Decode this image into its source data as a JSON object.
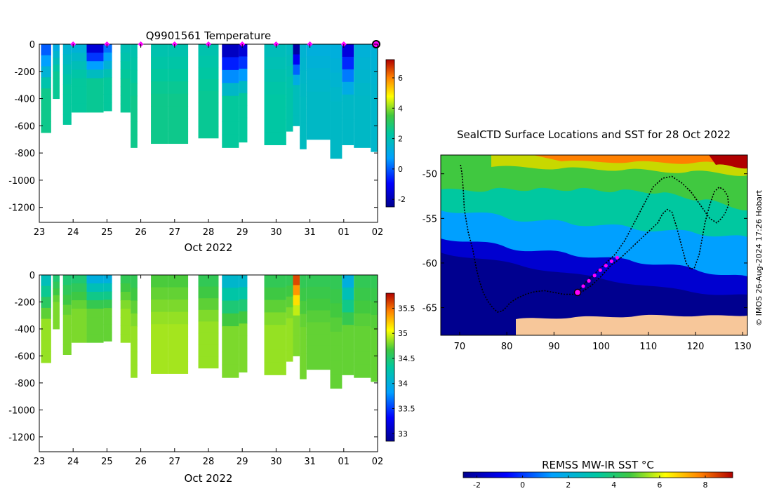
{
  "chart_data": [
    {
      "type": "heatmap",
      "title": "Q9901561  Temperature",
      "xlabel": "Oct 2022",
      "x_ticks": [
        "23",
        "24",
        "25",
        "26",
        "27",
        "28",
        "29",
        "30",
        "31",
        "01",
        "02"
      ],
      "x_range_days": [
        23,
        33
      ],
      "y_ticks": [
        "0",
        "-200",
        "-400",
        "-600",
        "-800",
        "-1000",
        "-1200"
      ],
      "ylim": [
        -1310,
        0
      ],
      "colorbar": {
        "range": [
          -2.5,
          7.2
        ],
        "ticks": [
          "-2",
          "0",
          "2",
          "4",
          "6"
        ]
      },
      "profile_markers_day": [
        24,
        25,
        26,
        27,
        28,
        29,
        30,
        31,
        32,
        33
      ],
      "profiles": [
        {
          "t0": 23.05,
          "t1": 23.35,
          "maxdepth": 650,
          "surface": 0.0,
          "deep": 2.6
        },
        {
          "t0": 23.4,
          "t1": 23.6,
          "maxdepth": 400,
          "surface": 1.2,
          "deep": 2.5
        },
        {
          "t0": 23.7,
          "t1": 23.95,
          "maxdepth": 590,
          "surface": 1.5,
          "deep": 2.4
        },
        {
          "t0": 23.95,
          "t1": 24.4,
          "maxdepth": 500,
          "surface": 1.4,
          "deep": 2.4
        },
        {
          "t0": 24.4,
          "t1": 24.9,
          "maxdepth": 500,
          "surface": -1.5,
          "deep": 2.5
        },
        {
          "t0": 24.9,
          "t1": 25.15,
          "maxdepth": 490,
          "surface": 0.2,
          "deep": 2.4
        },
        {
          "t0": 25.4,
          "t1": 25.7,
          "maxdepth": 500,
          "surface": 2.0,
          "deep": 2.5
        },
        {
          "t0": 25.7,
          "t1": 25.9,
          "maxdepth": 760,
          "surface": 2.1,
          "deep": 2.6
        },
        {
          "t0": 26.3,
          "t1": 26.8,
          "maxdepth": 730,
          "surface": 2.1,
          "deep": 2.6
        },
        {
          "t0": 26.8,
          "t1": 27.4,
          "maxdepth": 730,
          "surface": 2.1,
          "deep": 2.6
        },
        {
          "t0": 27.7,
          "t1": 28.3,
          "maxdepth": 690,
          "surface": 2.1,
          "deep": 2.5
        },
        {
          "t0": 28.4,
          "t1": 28.9,
          "maxdepth": 760,
          "surface": -1.8,
          "deep": 2.4
        },
        {
          "t0": 28.9,
          "t1": 29.15,
          "maxdepth": 720,
          "surface": -1.5,
          "deep": 2.4
        },
        {
          "t0": 29.65,
          "t1": 30.3,
          "maxdepth": 740,
          "surface": 1.9,
          "deep": 2.3
        },
        {
          "t0": 30.3,
          "t1": 30.5,
          "maxdepth": 640,
          "surface": 1.8,
          "deep": 2.2
        },
        {
          "t0": 30.5,
          "t1": 30.7,
          "maxdepth": 600,
          "surface": -2.2,
          "deep": 1.9
        },
        {
          "t0": 30.7,
          "t1": 30.9,
          "maxdepth": 770,
          "surface": 1.5,
          "deep": 1.8
        },
        {
          "t0": 30.9,
          "t1": 31.6,
          "maxdepth": 700,
          "surface": 1.3,
          "deep": 1.7
        },
        {
          "t0": 31.6,
          "t1": 31.95,
          "maxdepth": 840,
          "surface": 1.3,
          "deep": 1.7
        },
        {
          "t0": 31.95,
          "t1": 32.3,
          "maxdepth": 740,
          "surface": -1.4,
          "deep": 1.7
        },
        {
          "t0": 32.3,
          "t1": 32.8,
          "maxdepth": 760,
          "surface": 1.4,
          "deep": 1.7
        },
        {
          "t0": 32.8,
          "t1": 33.0,
          "maxdepth": 790,
          "surface": 1.4,
          "deep": 1.6
        }
      ]
    },
    {
      "type": "heatmap",
      "title": "",
      "xlabel": "Oct 2022",
      "x_ticks": [
        "23",
        "24",
        "25",
        "26",
        "27",
        "28",
        "29",
        "30",
        "31",
        "01",
        "02"
      ],
      "x_range_days": [
        23,
        33
      ],
      "y_ticks": [
        "0",
        "-200",
        "-400",
        "-600",
        "-800",
        "-1000",
        "-1200"
      ],
      "ylim": [
        -1310,
        0
      ],
      "colorbar": {
        "range": [
          32.85,
          35.8
        ],
        "ticks": [
          "33",
          "33.5",
          "34",
          "34.5",
          "35",
          "35.5"
        ]
      },
      "profiles": [
        {
          "t0": 23.05,
          "t1": 23.35,
          "maxdepth": 650,
          "surface": 34.2,
          "deep": 34.85
        },
        {
          "t0": 23.4,
          "t1": 23.6,
          "maxdepth": 400,
          "surface": 34.5,
          "deep": 34.8
        },
        {
          "t0": 23.7,
          "t1": 23.95,
          "maxdepth": 590,
          "surface": 34.5,
          "deep": 34.8
        },
        {
          "t0": 23.95,
          "t1": 24.4,
          "maxdepth": 500,
          "surface": 34.5,
          "deep": 34.8
        },
        {
          "t0": 24.4,
          "t1": 24.9,
          "maxdepth": 500,
          "surface": 34.0,
          "deep": 34.75
        },
        {
          "t0": 24.9,
          "t1": 25.15,
          "maxdepth": 490,
          "surface": 34.0,
          "deep": 34.75
        },
        {
          "t0": 25.4,
          "t1": 25.7,
          "maxdepth": 500,
          "surface": 34.6,
          "deep": 34.85
        },
        {
          "t0": 25.7,
          "t1": 25.9,
          "maxdepth": 760,
          "surface": 34.6,
          "deep": 34.85
        },
        {
          "t0": 26.3,
          "t1": 26.8,
          "maxdepth": 730,
          "surface": 34.7,
          "deep": 34.88
        },
        {
          "t0": 26.8,
          "t1": 27.4,
          "maxdepth": 730,
          "surface": 34.7,
          "deep": 34.88
        },
        {
          "t0": 27.7,
          "t1": 28.3,
          "maxdepth": 690,
          "surface": 34.6,
          "deep": 34.85
        },
        {
          "t0": 28.4,
          "t1": 28.9,
          "maxdepth": 760,
          "surface": 34.1,
          "deep": 34.8
        },
        {
          "t0": 28.9,
          "t1": 29.15,
          "maxdepth": 720,
          "surface": 34.1,
          "deep": 34.8
        },
        {
          "t0": 29.65,
          "t1": 30.3,
          "maxdepth": 740,
          "surface": 34.6,
          "deep": 34.85
        },
        {
          "t0": 30.3,
          "t1": 30.5,
          "maxdepth": 640,
          "surface": 34.6,
          "deep": 34.85
        },
        {
          "t0": 30.5,
          "t1": 30.7,
          "maxdepth": 600,
          "surface": 35.6,
          "deep": 34.8
        },
        {
          "t0": 30.7,
          "t1": 30.9,
          "maxdepth": 770,
          "surface": 34.6,
          "deep": 34.78
        },
        {
          "t0": 30.9,
          "t1": 31.6,
          "maxdepth": 700,
          "surface": 34.6,
          "deep": 34.75
        },
        {
          "t0": 31.6,
          "t1": 31.95,
          "maxdepth": 840,
          "surface": 34.6,
          "deep": 34.75
        },
        {
          "t0": 31.95,
          "t1": 32.3,
          "maxdepth": 740,
          "surface": 34.0,
          "deep": 34.75
        },
        {
          "t0": 32.3,
          "t1": 32.8,
          "maxdepth": 760,
          "surface": 34.6,
          "deep": 34.75
        },
        {
          "t0": 32.8,
          "t1": 33.0,
          "maxdepth": 790,
          "surface": 34.6,
          "deep": 34.75
        }
      ]
    },
    {
      "type": "heatmap",
      "title": "SealCTD Surface Locations and SST for 28 Oct 2022",
      "xlabel": "",
      "x_ticks": [
        "70",
        "80",
        "90",
        "100",
        "110",
        "120",
        "130"
      ],
      "xlim": [
        66,
        131
      ],
      "y_ticks": [
        "-50",
        "-55",
        "-60",
        "-65"
      ],
      "ylim": [
        -68.1,
        -47.9
      ],
      "track_lon": [
        70.2,
        70.5,
        70.8,
        71.0,
        71.8,
        72.8,
        73.5,
        74.2,
        75.0,
        76.0,
        77.0,
        78.0,
        79.0,
        79.8,
        80.6,
        82.0,
        84.0,
        86.0,
        88.0,
        90.0,
        92.0,
        94.0,
        96.0,
        98.0,
        100.0,
        102.0,
        104.0,
        106.0,
        108.0,
        110.0,
        112.0,
        113.0,
        114.0,
        115.0,
        116.0,
        117.0,
        118.0,
        119.0,
        119.8,
        120.8,
        121.5,
        122.0,
        123.0,
        124.0,
        125.0,
        126.0,
        126.8,
        127.0,
        126.2,
        125.5,
        124.5,
        123.0,
        121.0,
        119.0,
        117.0,
        115.0,
        113.0,
        111.0,
        109.0,
        107.0,
        105.0,
        103.0,
        101.0,
        99.0,
        97.0,
        95.0
      ],
      "track_lat": [
        -49.0,
        -50.0,
        -52.0,
        -54.0,
        -56.5,
        -58.5,
        -60.5,
        -62.0,
        -63.3,
        -64.3,
        -65.0,
        -65.5,
        -65.4,
        -65.0,
        -64.5,
        -64.0,
        -63.5,
        -63.2,
        -63.1,
        -63.3,
        -63.5,
        -63.5,
        -63.2,
        -62.5,
        -61.5,
        -60.3,
        -59.5,
        -58.5,
        -57.5,
        -56.5,
        -55.5,
        -54.5,
        -54.0,
        -54.3,
        -56.0,
        -58.0,
        -60.0,
        -60.7,
        -60.5,
        -59.0,
        -57.0,
        -55.5,
        -53.5,
        -52.0,
        -51.5,
        -51.8,
        -52.5,
        -53.5,
        -54.5,
        -55.0,
        -55.5,
        -55.0,
        -53.5,
        -52.0,
        -51.0,
        -50.3,
        -50.5,
        -51.5,
        -53.5,
        -55.5,
        -57.5,
        -59.0,
        -60.0,
        -61.0,
        -62.0,
        -63.3
      ],
      "magenta_points": [
        [
          95.0,
          -63.3
        ],
        [
          96.2,
          -62.6
        ],
        [
          97.4,
          -62.0
        ],
        [
          98.6,
          -61.4
        ],
        [
          99.8,
          -60.8
        ],
        [
          101.0,
          -60.3
        ],
        [
          102.2,
          -59.8
        ],
        [
          103.4,
          -59.4
        ]
      ],
      "current_location": [
        95.0,
        -63.3
      ],
      "colorbar": {
        "title": "REMSS MW-IR SST °C",
        "range": [
          -2.6,
          9.2
        ],
        "ticks": [
          "-2",
          "0",
          "2",
          "4",
          "6",
          "8"
        ]
      },
      "land_color": "#F7C79A",
      "footnote": "© IMOS 26-Aug-2024 17:26 Hobart"
    }
  ]
}
